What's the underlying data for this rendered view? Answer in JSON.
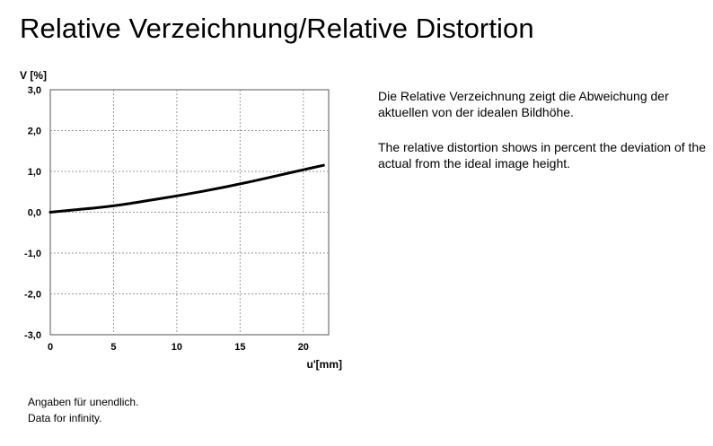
{
  "header": {
    "title": "Relative Verzeichnung/Relative Distortion"
  },
  "description": {
    "german": "Die Relative Verzeichnung zeigt die Abweichung der aktuellen von der idealen Bildhöhe.",
    "english": "The relative distortion shows in percent the deviation of the actual from the ideal image height."
  },
  "footnote": {
    "german": "Angaben für unendlich.",
    "english": "Data for infinity."
  },
  "chart_data": {
    "type": "line",
    "title": "",
    "xlabel": "u'[mm]",
    "ylabel": "V [%]",
    "xlim": [
      0,
      22
    ],
    "ylim": [
      -3,
      3
    ],
    "x_ticks": [
      0,
      5,
      10,
      15,
      20
    ],
    "x_tick_labels": [
      "0",
      "5",
      "10",
      "15",
      "20"
    ],
    "y_ticks": [
      3,
      2,
      1,
      0,
      -1,
      -2,
      -3
    ],
    "y_tick_labels": [
      "3,0",
      "2,0",
      "1,0",
      "0,0",
      "-1,0",
      "-2,0",
      "-3,0"
    ],
    "grid": true,
    "series": [
      {
        "color": "#000000",
        "x": [
          0,
          2,
          4,
          6,
          8,
          10,
          12,
          14,
          16,
          18,
          20,
          21.6
        ],
        "y": [
          0,
          0.06,
          0.12,
          0.2,
          0.3,
          0.4,
          0.51,
          0.63,
          0.76,
          0.9,
          1.04,
          1.15
        ]
      }
    ]
  }
}
